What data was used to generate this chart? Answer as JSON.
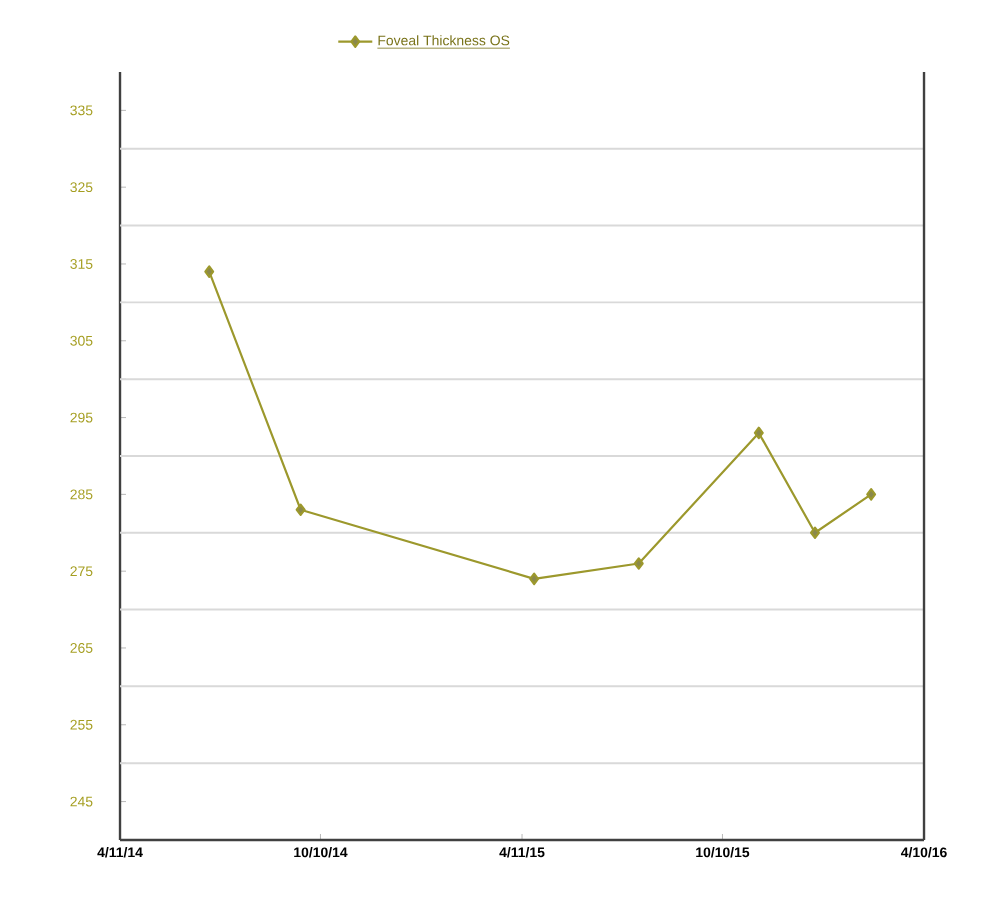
{
  "chart_data": {
    "type": "line",
    "x": [
      "2014-07-01",
      "2014-09-22",
      "2015-04-22",
      "2015-07-26",
      "2015-11-12",
      "2016-01-02",
      "2016-02-22"
    ],
    "series": [
      {
        "name": "Foveal Thickness OS",
        "color": "#9c982c",
        "values": [
          314,
          283,
          274,
          276,
          293,
          280,
          285
        ]
      }
    ],
    "xlim": [
      "2014-04-11",
      "2016-04-10"
    ],
    "xticks": [
      {
        "value": "2014-04-11",
        "label": "4/11/14"
      },
      {
        "value": "2014-10-10",
        "label": "10/10/14"
      },
      {
        "value": "2015-04-11",
        "label": "4/11/15"
      },
      {
        "value": "2015-10-10",
        "label": "10/10/15"
      },
      {
        "value": "2016-04-10",
        "label": "4/10/16"
      }
    ],
    "ylim": [
      240,
      340
    ],
    "yticks": [
      245,
      {
        "value": 250,
        "label": null
      },
      255,
      {
        "value": 260,
        "label": null
      },
      265,
      {
        "value": 270,
        "label": null
      },
      275,
      {
        "value": 280,
        "label": null
      },
      285,
      {
        "value": 290,
        "label": null
      },
      295,
      {
        "value": 300,
        "label": null
      },
      305,
      {
        "value": 310,
        "label": null
      },
      315,
      {
        "value": 320,
        "label": null
      },
      325,
      {
        "value": 330,
        "label": null
      },
      335
    ],
    "grid": "y",
    "legend": "top",
    "marker": "diamond",
    "line_style": "solid"
  }
}
